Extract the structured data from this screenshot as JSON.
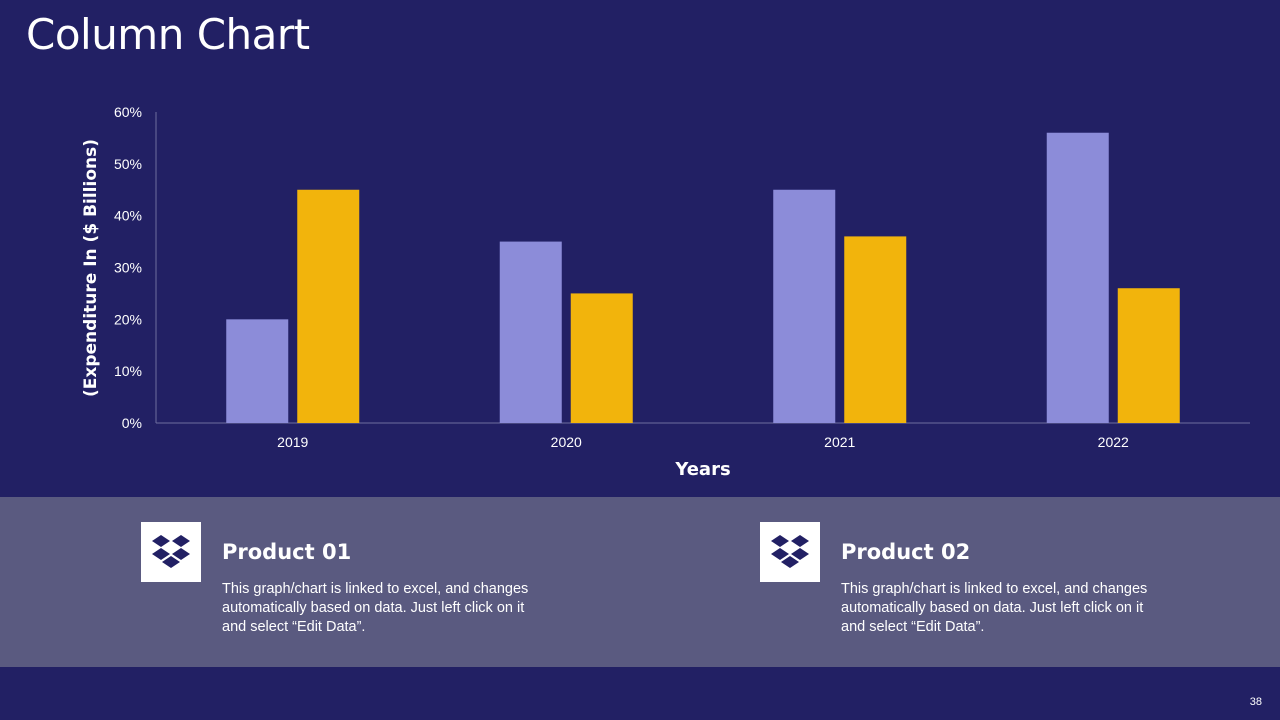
{
  "slide": {
    "title": "Column Chart",
    "page_number": "38"
  },
  "chart_data": {
    "type": "bar",
    "categories": [
      "2019",
      "2020",
      "2021",
      "2022"
    ],
    "series": [
      {
        "name": "Product 01",
        "values": [
          20,
          35,
          45,
          56
        ]
      },
      {
        "name": "Product 02",
        "values": [
          45,
          25,
          36,
          26
        ]
      }
    ],
    "y_ticks": [
      "0%",
      "10%",
      "20%",
      "30%",
      "40%",
      "50%",
      "60%"
    ],
    "ylim": [
      0,
      60
    ],
    "xlabel": "Years",
    "ylabel": "(Expenditure In ($ Billions)",
    "grid": false,
    "colors": [
      "#8c8cd9",
      "#f2b40c"
    ]
  },
  "products": [
    {
      "title": "Product 01",
      "description": "This graph/chart is linked to excel, and changes automatically based on data. Just left click on it and select “Edit Data”.",
      "icon": "dropbox-icon"
    },
    {
      "title": "Product 02",
      "description": "This graph/chart is linked to excel, and changes automatically based on data. Just left click on it and select “Edit Data”.",
      "icon": "dropbox-icon"
    }
  ]
}
